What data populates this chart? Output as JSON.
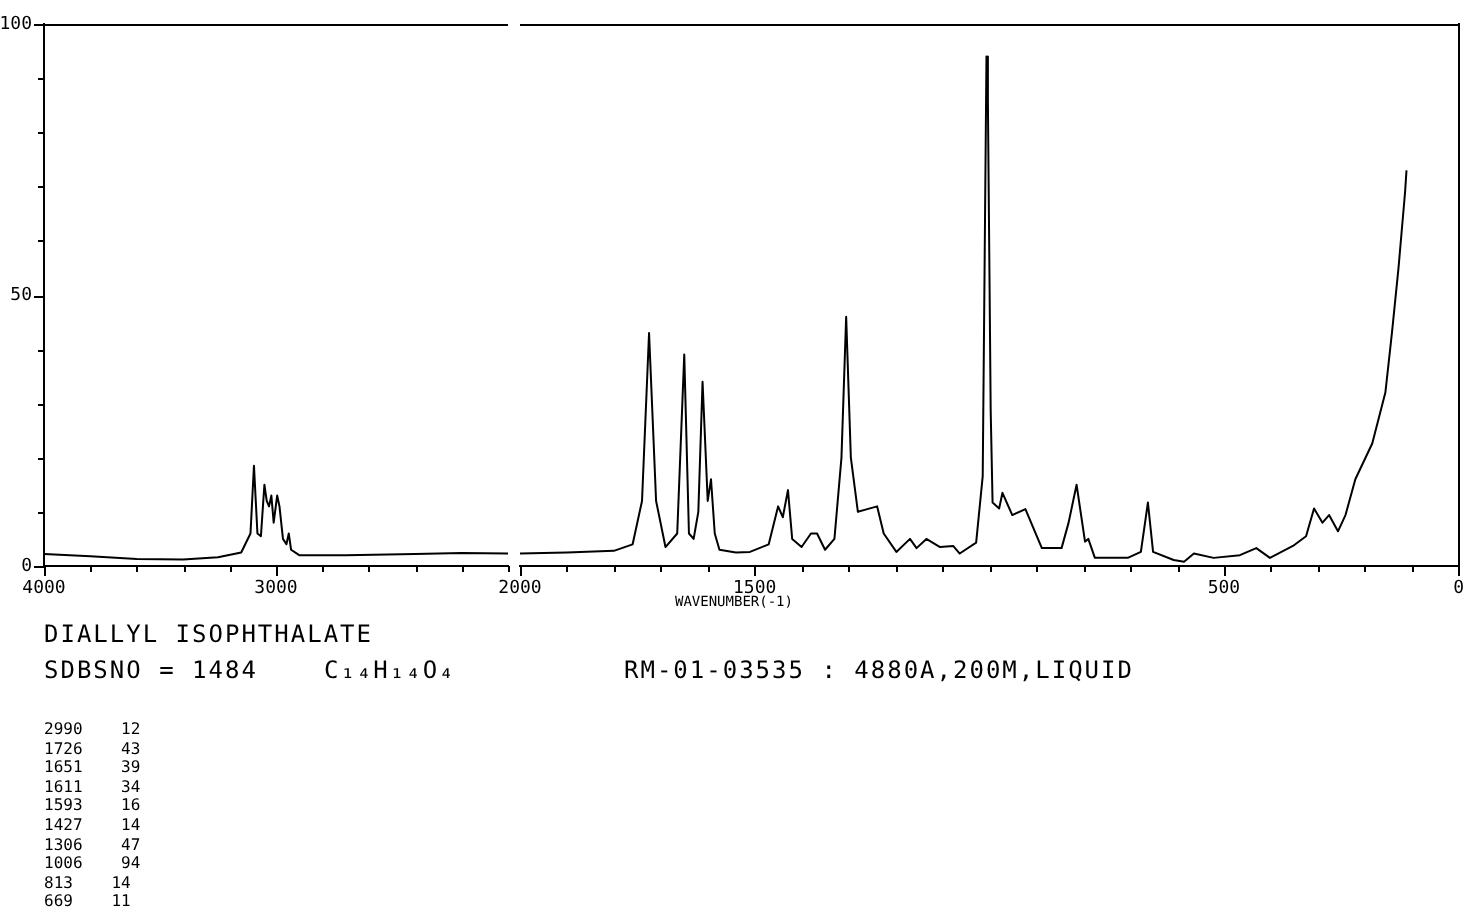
{
  "chart_data": [
    {
      "type": "line",
      "title": "DIALLYL ISOPHTHALATE",
      "grid": false,
      "legend": false,
      "annotations": [
        "SDBSNO = 1484",
        "C₁₄H₁₄O₄",
        "RM-01-03535 : 4880A,200M,LIQUID",
        "2990    12",
        "1726    43",
        "1651    39",
        "1611    34",
        "1593    16",
        "1427    14",
        "1306    47",
        "1006    94",
        "813    14",
        "669    11"
      ],
      "xlim": [
        4000,
        2000
      ],
      "ylim": [
        0,
        100
      ],
      "xticks": [
        4000,
        {
          "value": 3800,
          "label": null
        },
        {
          "value": 3600,
          "label": null
        },
        {
          "value": 3400,
          "label": null
        },
        {
          "value": 3200,
          "label": null
        },
        3000,
        {
          "value": 2800,
          "label": null
        },
        {
          "value": 2600,
          "label": null
        },
        {
          "value": 2400,
          "label": null
        },
        {
          "value": 2200,
          "label": null
        },
        {
          "value": 2000,
          "label": null
        }
      ],
      "yticks": [
        0,
        {
          "value": 10,
          "label": null
        },
        {
          "value": 20,
          "label": null
        },
        {
          "value": 30,
          "label": null
        },
        {
          "value": 40,
          "label": null
        },
        50,
        {
          "value": 60,
          "label": null
        },
        {
          "value": 70,
          "label": null
        },
        {
          "value": 80,
          "label": null
        },
        {
          "value": 90,
          "label": null
        },
        100
      ],
      "series": [
        {
          "color": "#000000",
          "x": [
            4000,
            3800,
            3600,
            3400,
            3250,
            3150,
            3110,
            3095,
            3080,
            3065,
            3050,
            3040,
            3030,
            3020,
            3010,
            2995,
            2985,
            2970,
            2955,
            2945,
            2935,
            2900,
            2700,
            2400,
            2200,
            2000
          ],
          "values": [
            2.2,
            1.8,
            1.3,
            1.2,
            1.6,
            2.5,
            6,
            18.5,
            6,
            5.5,
            15,
            12,
            11,
            13,
            8,
            13,
            11,
            5,
            4,
            6,
            3,
            2,
            2,
            2.2,
            2.4,
            2.3
          ]
        }
      ]
    },
    {
      "type": "line",
      "xlabel": "WAVENUMBER(-1)",
      "tick_labels": "x",
      "grid": false,
      "legend": false,
      "xlim": [
        2000,
        0
      ],
      "ylim": [
        0,
        100
      ],
      "xticks": [
        2000,
        {
          "value": 1900,
          "label": null
        },
        {
          "value": 1800,
          "label": null
        },
        {
          "value": 1700,
          "label": null
        },
        {
          "value": 1600,
          "label": null
        },
        1500,
        {
          "value": 1400,
          "label": null
        },
        {
          "value": 1300,
          "label": null
        },
        {
          "value": 1200,
          "label": null
        },
        {
          "value": 1100,
          "label": null
        },
        {
          "value": 1000,
          "label": null
        },
        {
          "value": 900,
          "label": null
        },
        {
          "value": 800,
          "label": null
        },
        {
          "value": 700,
          "label": null
        },
        {
          "value": 600,
          "label": null
        },
        500,
        {
          "value": 400,
          "label": null
        },
        {
          "value": 300,
          "label": null
        },
        {
          "value": 200,
          "label": null
        },
        {
          "value": 100,
          "label": null
        },
        0
      ],
      "series": [
        {
          "color": "#000000",
          "x": [
            2000,
            1900,
            1800,
            1760,
            1740,
            1725,
            1710,
            1690,
            1665,
            1650,
            1640,
            1630,
            1620,
            1611,
            1600,
            1593,
            1585,
            1575,
            1540,
            1510,
            1470,
            1450,
            1440,
            1429,
            1420,
            1400,
            1380,
            1367,
            1350,
            1330,
            1315,
            1305,
            1295,
            1280,
            1260,
            1239,
            1225,
            1198,
            1169,
            1155,
            1134,
            1105,
            1077,
            1063,
            1028,
            1014,
            1006,
            1003,
            997,
            993,
            979,
            972,
            951,
            923,
            888,
            846,
            831,
            814,
            796,
            789,
            775,
            705,
            677,
            662,
            651,
            607,
            585,
            564,
            522,
            466,
            431,
            402,
            353,
            325,
            308,
            290,
            276,
            257,
            241,
            220,
            184,
            156,
            142,
            128,
            114,
            111
          ],
          "values": [
            2.3,
            2.5,
            2.8,
            4,
            12,
            43,
            12,
            3.5,
            6,
            39,
            6,
            5,
            10,
            34,
            12,
            16,
            6,
            3,
            2.5,
            2.6,
            4,
            11,
            9,
            14,
            5,
            3.5,
            6,
            6,
            3,
            5,
            20,
            46,
            20,
            10,
            10.5,
            11,
            6,
            2.6,
            5,
            3.3,
            5,
            3.5,
            3.7,
            2.3,
            4.3,
            16.6,
            94,
            86,
            28.6,
            11.7,
            10.6,
            13.5,
            9.4,
            10.5,
            3.3,
            3.3,
            8,
            15,
            4.5,
            5,
            1.5,
            1.5,
            2.6,
            11.7,
            2.6,
            1.1,
            0.8,
            2.3,
            1.5,
            2,
            3.3,
            1.5,
            3.7,
            5.5,
            10.6,
            8,
            9.4,
            6.4,
            9.4,
            16,
            22.6,
            32,
            43,
            55,
            69,
            73
          ]
        }
      ]
    }
  ]
}
